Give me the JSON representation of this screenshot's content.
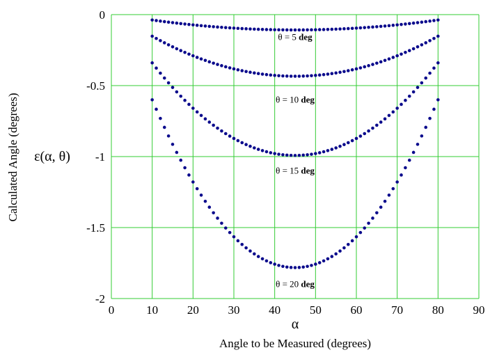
{
  "chart_data": {
    "type": "scatter",
    "title": "",
    "xlabel_symbol": "α",
    "xlabel": "Angle to be Measured (degrees)",
    "ylabel": "Calculated Angle (degrees)",
    "ylabel_symbol": "ε(α, θ)",
    "xlim": [
      0,
      90
    ],
    "ylim": [
      -2,
      0
    ],
    "xticks": [
      0,
      10,
      20,
      30,
      40,
      50,
      60,
      70,
      80,
      90
    ],
    "xtick_labels": [
      "0",
      "10",
      "20",
      "30",
      "40",
      "50",
      "60",
      "70",
      "80",
      "90"
    ],
    "yticks": [
      0,
      -0.5,
      -1,
      -1.5,
      -2
    ],
    "ytick_labels": [
      "0",
      "-0.5",
      "-1",
      "-1.5",
      "-2"
    ],
    "grid": true,
    "grid_color": "#33cc33",
    "marker_color": "#0a0a8c",
    "x_range": [
      10,
      80
    ],
    "x_step": 1,
    "series": [
      {
        "label_text": "θ = 5 ",
        "label_bold": "deg",
        "label_x": 45,
        "label_y": -0.18,
        "x": [
          10,
          45,
          80
        ],
        "y": [
          -0.038,
          -0.108,
          -0.038
        ]
      },
      {
        "label_text": "θ = 10 ",
        "label_bold": "deg",
        "label_x": 45,
        "label_y": -0.62,
        "x": [
          10,
          45,
          80
        ],
        "y": [
          -0.152,
          -0.434,
          -0.152
        ]
      },
      {
        "label_text": "θ = 15 ",
        "label_bold": "deg",
        "label_x": 45,
        "label_y": -1.12,
        "x": [
          10,
          45,
          80
        ],
        "y": [
          -0.34,
          -0.992,
          -0.34
        ]
      },
      {
        "label_text": "θ = 20 ",
        "label_bold": "deg",
        "label_x": 45,
        "label_y": -1.92,
        "x": [
          10,
          45,
          80
        ],
        "y": [
          -0.6,
          -1.782,
          -0.6
        ]
      }
    ]
  }
}
